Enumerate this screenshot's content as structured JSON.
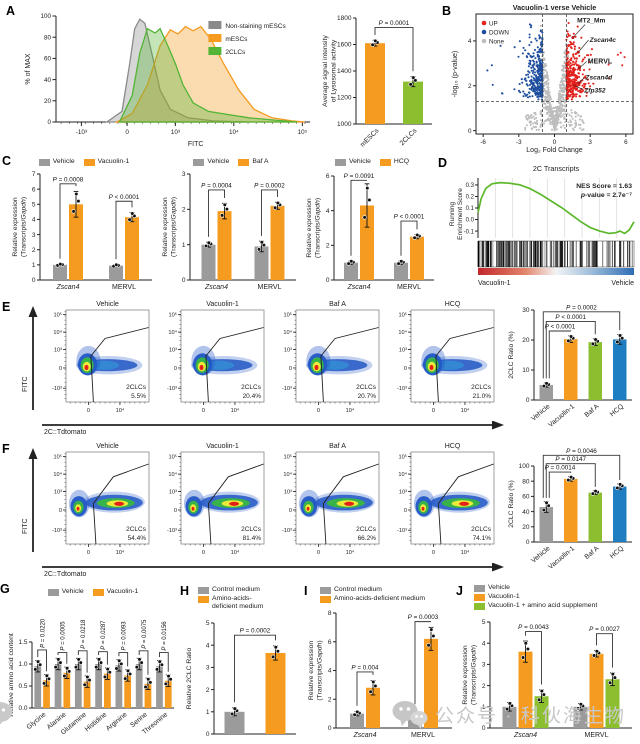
{
  "panels": {
    "a": {
      "label": "A"
    },
    "b": {
      "label": "B"
    },
    "c": {
      "label": "C"
    },
    "d": {
      "label": "D"
    },
    "e": {
      "label": "E"
    },
    "f": {
      "label": "F"
    },
    "g": {
      "label": "G"
    },
    "h": {
      "label": "H"
    },
    "i": {
      "label": "I"
    },
    "j": {
      "label": "J"
    }
  },
  "colors": {
    "gray": "#9B9B9B",
    "orange": "#F49B20",
    "green": "#8CBF2F",
    "blue": "#1F7EC2",
    "up_red": "#E3211C",
    "down_blue": "#1F4E9E",
    "none_gray": "#BDBDBD",
    "gsea_green": "#5CB82B"
  },
  "axes": {
    "fitc": "FITC",
    "tdtomato": "2C::Tdtomato"
  },
  "watermark": {
    "text": "公众号 · 科伙海生物"
  },
  "chart_data": [
    {
      "id": "a_hist",
      "type": "hist",
      "ylabel": "% of MAX",
      "xlabel": "FITC",
      "yticks": [
        0,
        20,
        40,
        60,
        80,
        100
      ],
      "xticks": [
        "-10³",
        "0",
        "10³",
        "10⁴",
        "10⁵"
      ],
      "series": [
        {
          "name": "Non-staining mESCs",
          "color": "#8A8A8A"
        },
        {
          "name": "mESCs",
          "color": "#F49B20"
        },
        {
          "name": "2CLCs",
          "color": "#53B435"
        }
      ]
    },
    {
      "id": "a_bar",
      "type": "bar",
      "ylim": [
        1000,
        1800
      ],
      "yticks": [
        1000,
        1200,
        1400,
        1600,
        1800
      ],
      "cats": [
        "mESCs",
        "2CLCs"
      ],
      "values": [
        1610,
        1320
      ],
      "colors": [
        "#F49B20",
        "#8CBF2F"
      ],
      "err": [
        22,
        38
      ],
      "rotx": -45,
      "ml": 36,
      "mt": 16,
      "mb": 28,
      "ylabel": [
        "Average signal intensity",
        "of Lysosomal activity"
      ],
      "pvals": [
        {
          "l": "P = 0.0001",
          "a": 0,
          "b": 1,
          "y": 1728
        }
      ]
    },
    {
      "id": "b_volcano",
      "type": "volcano",
      "title": "Vacuolin-1 verse Vehicle",
      "xlabel": "Log₂ Fold Change",
      "ylabel": "-log₁₀ (p-value)",
      "xticks": [
        -6,
        -3,
        0,
        3,
        6
      ],
      "yticks": [
        0,
        2,
        4
      ],
      "vlines": [
        -1,
        1
      ],
      "hline": 1.3,
      "legend": [
        {
          "l": "UP",
          "c": "#E3211C"
        },
        {
          "l": "DOWN",
          "c": "#1F4E9E"
        },
        {
          "l": "None",
          "c": "#BDBDBD"
        }
      ],
      "genes": [
        {
          "t": "MT2_Mm",
          "italic": false,
          "px": 1.55,
          "py": 4.15,
          "lx": 1.9,
          "ly": 4.82,
          "lox": 8,
          "loy": 2
        },
        {
          "t": "Zscan4c",
          "italic": true,
          "px": 2.0,
          "py": 3.5,
          "lx": 2.95,
          "ly": 3.95,
          "lox": -1,
          "loy": -2
        },
        {
          "t": "MERVL",
          "italic": false,
          "px": 2.1,
          "py": 2.8,
          "lx": 2.8,
          "ly": 3.0,
          "lox": -1,
          "loy": -2
        },
        {
          "t": "Zscan4d",
          "italic": true,
          "px": 2.05,
          "py": 2.12,
          "lx": 2.6,
          "ly": 2.28,
          "lox": -1,
          "loy": -2
        },
        {
          "t": "Zfp352",
          "italic": true,
          "px": 1.7,
          "py": 2.0,
          "lx": 2.5,
          "ly": 1.7,
          "lox": -1,
          "loy": -3
        }
      ]
    },
    {
      "id": "c1",
      "type": "bar",
      "legend": {
        "dir": "h",
        "items": [
          {
            "l": "Vehicle",
            "c": "#9B9B9B"
          },
          {
            "l": "Vacuolin-1",
            "c": "#F49B20"
          }
        ]
      },
      "ylim": [
        0,
        7
      ],
      "yticks": [
        0,
        1,
        2,
        3,
        4,
        5,
        6,
        7
      ],
      "groups": [
        "Zscan4",
        "MERVL"
      ],
      "gItalic": [
        true,
        false
      ],
      "series": [
        {
          "name": "Vehicle",
          "color": "#9B9B9B",
          "values": [
            1,
            0.95
          ]
        },
        {
          "name": "Vacuolin-1",
          "color": "#F49B20",
          "values": [
            5,
            4.15
          ]
        }
      ],
      "err": [
        0.06,
        0.85,
        0.07,
        0.3
      ],
      "ml": 30,
      "mt": 8,
      "mb": 14,
      "ylabel": [
        "Relative expression",
        "(Transcripts/Gapdh)"
      ],
      "pvals": [
        {
          "l": "P = 0.0008",
          "a": 0,
          "b": 1,
          "y": 6.35
        },
        {
          "l": "P < 0.0001",
          "a": 2,
          "b": 3,
          "y": 5.2
        }
      ]
    },
    {
      "id": "c2",
      "type": "bar",
      "legend": {
        "dir": "h",
        "items": [
          {
            "l": "Vehicle",
            "c": "#9B9B9B"
          },
          {
            "l": "Baf A",
            "c": "#F49B20"
          }
        ]
      },
      "ylim": [
        0,
        3
      ],
      "yticks": [
        0,
        1,
        2,
        3
      ],
      "groups": [
        "Zscan4",
        "MERVL"
      ],
      "gItalic": [
        true,
        false
      ],
      "series": [
        {
          "name": "Vehicle",
          "color": "#9B9B9B",
          "values": [
            1,
            0.95
          ]
        },
        {
          "name": "Baf A",
          "color": "#F49B20",
          "values": [
            1.95,
            2.1
          ]
        }
      ],
      "err": [
        0.07,
        0.22,
        0.15,
        0.1
      ],
      "ml": 30,
      "mt": 8,
      "mb": 14,
      "ylabel": [
        "Relative expression",
        "(Transcripts/Gapdh)"
      ],
      "pvals": [
        {
          "l": "P = 0.0004",
          "a": 0,
          "b": 1,
          "y": 2.55
        },
        {
          "l": "P = 0.0002",
          "a": 2,
          "b": 3,
          "y": 2.55
        }
      ]
    },
    {
      "id": "c3",
      "type": "bar",
      "legend": {
        "dir": "h",
        "items": [
          {
            "l": "Vehicle",
            "c": "#9B9B9B"
          },
          {
            "l": "HCQ",
            "c": "#F49B20"
          }
        ]
      },
      "ylim": [
        0,
        6
      ],
      "yticks": [
        0,
        2,
        4,
        6
      ],
      "groups": [
        "Zscan4",
        "MERVL"
      ],
      "gItalic": [
        true,
        false
      ],
      "series": [
        {
          "name": "Vehicle",
          "color": "#9B9B9B",
          "values": [
            1,
            1
          ]
        },
        {
          "name": "HCQ",
          "color": "#F49B20",
          "values": [
            4.3,
            2.5
          ]
        }
      ],
      "err": [
        0.1,
        1.25,
        0.1,
        0.12
      ],
      "ml": 30,
      "mt": 10,
      "mb": 14,
      "ylabel": [
        "Relative expression",
        "(Transcripts/Gapdh)"
      ],
      "pvals": [
        {
          "l": "P = 0.0091",
          "a": 0,
          "b": 1,
          "y": 5.75
        },
        {
          "l": "P < 0.0001",
          "a": 2,
          "b": 3,
          "y": 3.4
        }
      ]
    },
    {
      "id": "d_gsea",
      "type": "gsea",
      "title": "2C Transcripts",
      "nes": "NES Score = 1.63",
      "pv": "p-value = 2.7e⁻⁷",
      "ylabel": [
        "Running",
        "Enrichment Score"
      ],
      "yticks": [
        [
          -0.1,
          "-0.1"
        ],
        [
          0,
          "0.0"
        ],
        [
          0.1,
          "0.1"
        ],
        [
          0.2,
          "0.2"
        ],
        [
          0.3,
          "0.3"
        ]
      ],
      "left": "Vacuolin-1",
      "right": "Vehicle",
      "curve": [
        [
          0,
          0.06
        ],
        [
          0.02,
          0.18
        ],
        [
          0.05,
          0.27
        ],
        [
          0.09,
          0.31
        ],
        [
          0.14,
          0.32
        ],
        [
          0.2,
          0.315
        ],
        [
          0.27,
          0.3
        ],
        [
          0.33,
          0.27
        ],
        [
          0.4,
          0.22
        ],
        [
          0.47,
          0.16
        ],
        [
          0.54,
          0.1
        ],
        [
          0.6,
          0.04
        ],
        [
          0.66,
          -0.02
        ],
        [
          0.72,
          -0.07
        ],
        [
          0.78,
          -0.1
        ],
        [
          0.84,
          -0.12
        ],
        [
          0.88,
          -0.115
        ],
        [
          0.91,
          -0.1
        ],
        [
          0.94,
          -0.12
        ],
        [
          0.97,
          -0.09
        ],
        [
          1.0,
          -0.02
        ]
      ]
    },
    {
      "id": "e_flow",
      "type": "flowrow",
      "variant": "e",
      "gate_label": "2CLCs",
      "yticks": [
        [
          "10⁵",
          0.05
        ],
        [
          "10⁴",
          0.24
        ],
        [
          "10³",
          0.43
        ],
        [
          "0",
          0.63
        ],
        [
          "-10³",
          0.85
        ]
      ],
      "xticks": [
        [
          "0",
          0.27
        ],
        [
          "10⁴",
          0.65
        ]
      ],
      "plots": [
        {
          "title": "Vehicle",
          "pct": "5.5%"
        },
        {
          "title": "Vacuolin-1",
          "pct": "20.4%"
        },
        {
          "title": "Baf A",
          "pct": "20.7%"
        },
        {
          "title": "HCQ",
          "pct": "21.0%"
        }
      ]
    },
    {
      "id": "e_bar",
      "type": "bar",
      "ylim": [
        0,
        30
      ],
      "yticks": [
        0,
        10,
        20,
        30
      ],
      "cats": [
        "Vehicle",
        "Vacuolin-1",
        "Baf A",
        "HCQ"
      ],
      "values": [
        5,
        20.3,
        19.3,
        20.2
      ],
      "colors": [
        "#9B9B9B",
        "#F49B20",
        "#8CBF2F",
        "#1F7EC2"
      ],
      "err": [
        0.7,
        1.1,
        1.1,
        1.6
      ],
      "rotx": -40,
      "ml": 28,
      "mt": 12,
      "mb": 34,
      "ylabel": [
        "2CLC Ratio (%)"
      ],
      "pvals": [
        {
          "l": "P < 0.0001",
          "a": 0,
          "b": 1,
          "y": 23,
          "ax": 3
        },
        {
          "l": "P < 0.0001",
          "a": 0,
          "b": 2,
          "y": 26.2,
          "ax": 0
        },
        {
          "l": "P = 0.0002",
          "a": 0,
          "b": 3,
          "y": 29.4,
          "ax": -3
        }
      ]
    },
    {
      "id": "f_flow",
      "type": "flowrow",
      "variant": "f",
      "gate_label": "2CLCs",
      "yticks": [
        [
          "10⁵",
          0.05
        ],
        [
          "10⁴",
          0.24
        ],
        [
          "10³",
          0.43
        ],
        [
          "0",
          0.63
        ],
        [
          "-10³",
          0.85
        ]
      ],
      "xticks": [
        [
          "0",
          0.27
        ],
        [
          "10⁴",
          0.65
        ]
      ],
      "plots": [
        {
          "title": "Vehicle",
          "pct": "54.4%"
        },
        {
          "title": "Vacuolin-1",
          "pct": "81.4%"
        },
        {
          "title": "Baf A",
          "pct": "66.2%"
        },
        {
          "title": "HCQ",
          "pct": "74.1%"
        }
      ]
    },
    {
      "id": "f_bar",
      "type": "bar",
      "ylim": [
        0,
        100
      ],
      "yticks": [
        0,
        20,
        40,
        60,
        80,
        100
      ],
      "cats": [
        "Vehicle",
        "Vacuolin-1",
        "Baf A",
        "HCQ"
      ],
      "values": [
        46,
        83,
        65,
        73
      ],
      "colors": [
        "#9B9B9B",
        "#F49B20",
        "#8CBF2F",
        "#1F7EC2"
      ],
      "err": [
        7,
        3,
        2.5,
        3.5
      ],
      "rotx": -40,
      "ml": 28,
      "mt": 26,
      "mb": 34,
      "ylabel": [
        "2CLC Ratio (%)"
      ],
      "pvals": [
        {
          "l": "P = 0.0014",
          "a": 0,
          "b": 1,
          "y": 92,
          "ax": 3
        },
        {
          "l": "P = 0.0147",
          "a": 0,
          "b": 2,
          "y": 103,
          "ax": 0
        },
        {
          "l": "P = 0.0046",
          "a": 0,
          "b": 3,
          "y": 114,
          "ax": -3
        }
      ]
    },
    {
      "id": "g_bar",
      "type": "bar",
      "legend": {
        "dir": "h",
        "items": [
          {
            "l": "Vehicle",
            "c": "#9B9B9B"
          },
          {
            "l": "Vacuolin-1",
            "c": "#F49B20"
          }
        ]
      },
      "ylim": [
        0,
        1.5
      ],
      "yticks": [
        0,
        0.5,
        1,
        1.5
      ],
      "fmt1": true,
      "groups": [
        "Glycine",
        "Alanine",
        "Glutamine",
        "Histidine",
        "Arginine",
        "Serine",
        "Threonine"
      ],
      "gItalic": [
        false,
        false,
        false,
        false,
        false,
        false,
        false
      ],
      "series": [
        {
          "name": "Vehicle",
          "color": "#9B9B9B",
          "values": [
            0.95,
            1.0,
            1.0,
            1.0,
            0.97,
            1.0,
            0.95
          ]
        },
        {
          "name": "Vacuolin-1",
          "color": "#F49B20",
          "values": [
            0.63,
            0.8,
            0.6,
            0.78,
            0.74,
            0.55,
            0.62
          ]
        }
      ],
      "errDefault": 0.13,
      "rotx": -40,
      "ml": 26,
      "mt": 46,
      "mb": 34,
      "ylabel": [
        "Relative amino acid content"
      ],
      "pvals": [
        {
          "l": "P = 0.0220",
          "a": 0,
          "b": 1,
          "y": 1.32,
          "rot": 1
        },
        {
          "l": "P = 0.0005",
          "a": 2,
          "b": 3,
          "y": 1.26,
          "rot": 1
        },
        {
          "l": "P = 0.0218",
          "a": 4,
          "b": 5,
          "y": 1.3,
          "rot": 1
        },
        {
          "l": "P = 0.0287",
          "a": 6,
          "b": 7,
          "y": 1.28,
          "rot": 1
        },
        {
          "l": "P = 0.0093",
          "a": 8,
          "b": 9,
          "y": 1.26,
          "rot": 1
        },
        {
          "l": "P = 0.0075",
          "a": 10,
          "b": 11,
          "y": 1.3,
          "rot": 1
        },
        {
          "l": "P = 0.0156",
          "a": 12,
          "b": 13,
          "y": 1.26,
          "rot": 1
        }
      ]
    },
    {
      "id": "h_bar",
      "type": "bar",
      "legend": {
        "dir": "v",
        "items": [
          {
            "l": "Control medium",
            "c": "#9B9B9B"
          },
          {
            "l": "Amino-acids-\ndeficient medium",
            "c": "#F49B20"
          }
        ]
      },
      "ylim": [
        0,
        5
      ],
      "yticks": [
        0,
        1,
        2,
        3,
        4,
        5
      ],
      "values": [
        1,
        3.65
      ],
      "colors": [
        "#9B9B9B",
        "#F49B20"
      ],
      "err": [
        0.18,
        0.32
      ],
      "ml": 30,
      "mt": 12,
      "mb": 8,
      "ylabel": [
        "Relative 2CLC Ratio"
      ],
      "pvals": [
        {
          "l": "P = 0.0002",
          "a": 0,
          "b": 1,
          "y": 4.45
        }
      ]
    },
    {
      "id": "i_bar",
      "type": "bar",
      "legend": {
        "dir": "v",
        "items": [
          {
            "l": "Control medium",
            "c": "#9B9B9B"
          },
          {
            "l": "Amino-acids-deficient medium",
            "c": "#F49B20"
          }
        ]
      },
      "ylim": [
        0,
        8
      ],
      "yticks": [
        0,
        2,
        4,
        6,
        8
      ],
      "groups": [
        "Zscan4",
        "MERVL"
      ],
      "gItalic": [
        true,
        false
      ],
      "series": [
        {
          "name": "Control medium",
          "color": "#9B9B9B",
          "values": [
            1,
            1
          ]
        },
        {
          "name": "Amino-acids-deficient medium",
          "color": "#F49B20",
          "values": [
            2.8,
            6.2
          ]
        }
      ],
      "err": [
        0.15,
        0.5,
        0.25,
        0.8
      ],
      "ml": 30,
      "mt": 10,
      "mb": 14,
      "ylabel": [
        "Relative expression",
        "(Transcripts/Gapdh)"
      ],
      "pvals": [
        {
          "l": "P = 0.004",
          "a": 0,
          "b": 1,
          "y": 3.9
        },
        {
          "l": "P = 0.0003",
          "a": 2,
          "b": 3,
          "y": 7.4
        }
      ]
    },
    {
      "id": "j_bar",
      "type": "bar",
      "legend": {
        "dir": "v",
        "items": [
          {
            "l": "Vehicle",
            "c": "#9B9B9B"
          },
          {
            "l": "Vacuolin-1",
            "c": "#F49B20"
          },
          {
            "l": "Vacuolin-1 + amino acid supplement",
            "c": "#8CBF2F"
          }
        ]
      },
      "ylim": [
        0,
        5
      ],
      "yticks": [
        0,
        1,
        2,
        3,
        4,
        5
      ],
      "groups": [
        "Zscan4",
        "MERVL"
      ],
      "gItalic": [
        true,
        false
      ],
      "series": [
        {
          "name": "Vehicle",
          "color": "#9B9B9B",
          "values": [
            1,
            1
          ]
        },
        {
          "name": "Vacuolin-1",
          "color": "#F49B20",
          "values": [
            3.6,
            3.5
          ]
        },
        {
          "name": "Vacuolin-1 + amino acid supplement",
          "color": "#8CBF2F",
          "values": [
            1.5,
            2.3
          ]
        }
      ],
      "err": [
        0.2,
        0.5,
        0.3,
        0.15,
        0.15,
        0.3
      ],
      "ml": 30,
      "mt": 12,
      "mb": 14,
      "ylabel": [
        "Relative expression",
        "(Transcripts/Gapdh)"
      ],
      "pvals": [
        {
          "l": "P = 0.0043",
          "a": 1,
          "b": 2,
          "y": 4.55
        },
        {
          "l": "P = 0.0027",
          "a": 4,
          "b": 5,
          "y": 4.45
        }
      ]
    }
  ]
}
